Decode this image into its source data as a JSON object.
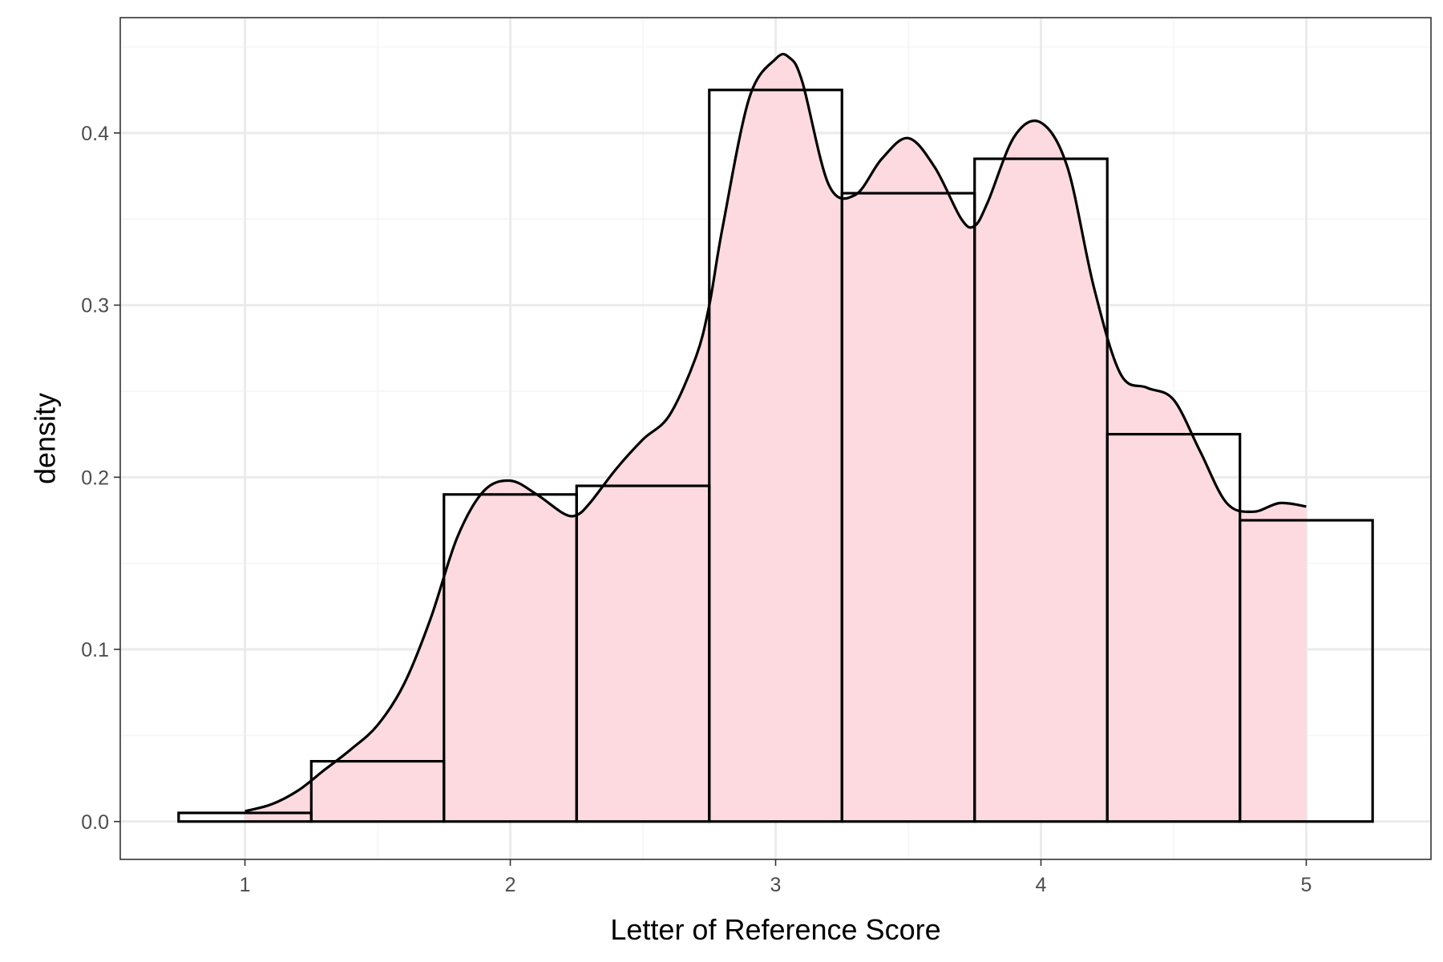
{
  "chart_data": {
    "type": "bar",
    "subtype": "histogram-with-density",
    "title": "",
    "xlabel": "Letter of Reference Score",
    "ylabel": "density",
    "xlim": [
      0.53,
      5.47
    ],
    "ylim": [
      -0.022,
      0.467
    ],
    "x_ticks": [
      "1",
      "2",
      "3",
      "4",
      "5"
    ],
    "x_tick_values": [
      1,
      2,
      3,
      4,
      5
    ],
    "y_ticks": [
      "0.0",
      "0.1",
      "0.2",
      "0.3",
      "0.4"
    ],
    "y_tick_values": [
      0.0,
      0.1,
      0.2,
      0.3,
      0.4
    ],
    "grid": true,
    "legend": "none",
    "histogram": {
      "bin_width": 0.5,
      "bins": [
        {
          "x0": 0.75,
          "x1": 1.25,
          "density": 0.005
        },
        {
          "x0": 1.25,
          "x1": 1.75,
          "density": 0.035
        },
        {
          "x0": 1.75,
          "x1": 2.25,
          "density": 0.19
        },
        {
          "x0": 2.25,
          "x1": 2.75,
          "density": 0.195
        },
        {
          "x0": 2.75,
          "x1": 3.25,
          "density": 0.425
        },
        {
          "x0": 3.25,
          "x1": 3.75,
          "density": 0.365
        },
        {
          "x0": 3.75,
          "x1": 4.25,
          "density": 0.385
        },
        {
          "x0": 4.25,
          "x1": 4.75,
          "density": 0.225
        },
        {
          "x0": 4.75,
          "x1": 5.25,
          "density": 0.175
        }
      ]
    },
    "density_curve": {
      "x": [
        1.0,
        1.1,
        1.2,
        1.3,
        1.4,
        1.5,
        1.6,
        1.7,
        1.8,
        1.9,
        2.0,
        2.1,
        2.2,
        2.25,
        2.3,
        2.4,
        2.5,
        2.6,
        2.7,
        2.75,
        2.8,
        2.9,
        3.0,
        3.05,
        3.1,
        3.2,
        3.3,
        3.4,
        3.5,
        3.6,
        3.7,
        3.75,
        3.8,
        3.9,
        4.0,
        4.1,
        4.2,
        4.3,
        4.4,
        4.5,
        4.6,
        4.7,
        4.8,
        4.9,
        5.0
      ],
      "y": [
        0.006,
        0.01,
        0.018,
        0.03,
        0.042,
        0.056,
        0.08,
        0.118,
        0.165,
        0.192,
        0.198,
        0.19,
        0.179,
        0.178,
        0.185,
        0.205,
        0.222,
        0.236,
        0.27,
        0.3,
        0.345,
        0.42,
        0.443,
        0.444,
        0.43,
        0.37,
        0.364,
        0.385,
        0.397,
        0.38,
        0.35,
        0.346,
        0.36,
        0.398,
        0.406,
        0.38,
        0.31,
        0.26,
        0.252,
        0.245,
        0.215,
        0.185,
        0.18,
        0.185,
        0.183
      ]
    },
    "colors": {
      "fill": "#fcdadf",
      "outline": "#000000",
      "grid_major": "#ebebeb",
      "grid_minor": "#f5f5f5",
      "panel_border": "#333333"
    }
  }
}
